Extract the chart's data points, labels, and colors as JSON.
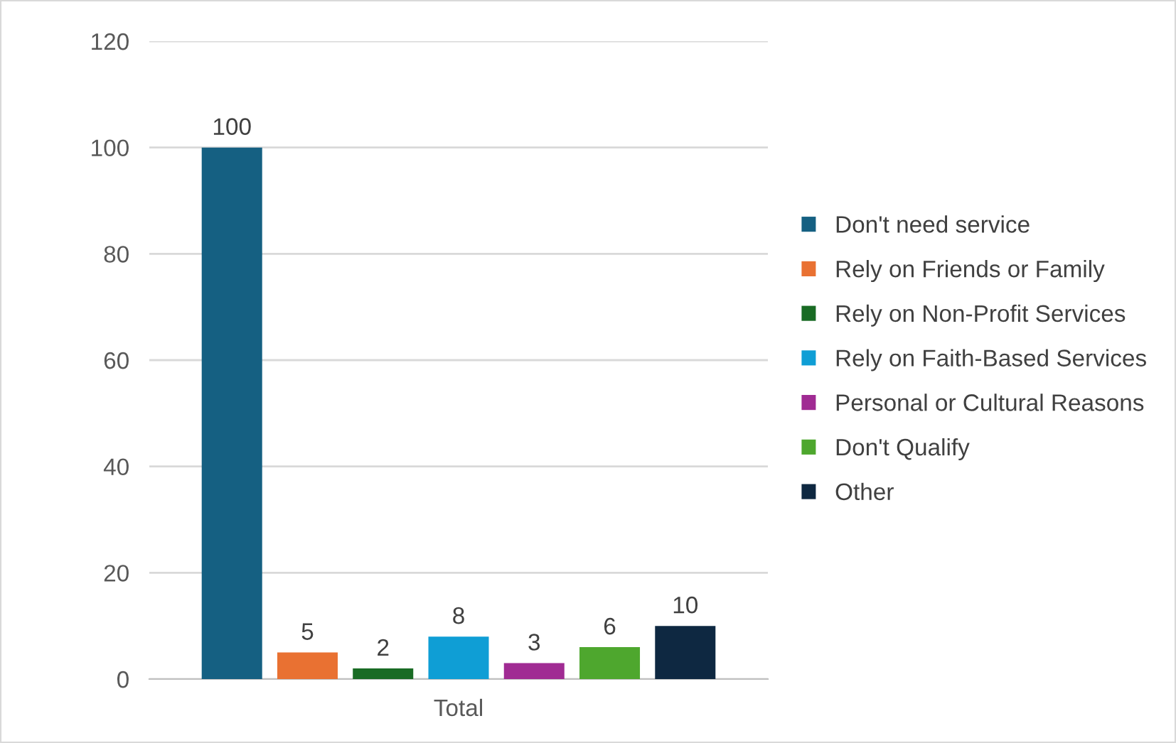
{
  "chart_data": {
    "type": "bar",
    "categories": [
      "Total"
    ],
    "series": [
      {
        "name": "Don't need service",
        "color": "#156082",
        "values": [
          100
        ]
      },
      {
        "name": "Rely on Friends or Family",
        "color": "#e97132",
        "values": [
          5
        ]
      },
      {
        "name": "Rely on Non-Profit Services",
        "color": "#196b24",
        "values": [
          2
        ]
      },
      {
        "name": "Rely on Faith-Based Services",
        "color": "#0f9ed5",
        "values": [
          8
        ]
      },
      {
        "name": "Personal or Cultural Reasons",
        "color": "#a02b93",
        "values": [
          3
        ]
      },
      {
        "name": "Don't Qualify",
        "color": "#4ea72e",
        "values": [
          6
        ]
      },
      {
        "name": "Other",
        "color": "#0e2841",
        "values": [
          10
        ]
      }
    ],
    "ylim": [
      0,
      120
    ],
    "yticks": [
      0,
      20,
      40,
      60,
      80,
      100,
      120
    ],
    "grid": "y",
    "legend": "right",
    "data_labels": true
  }
}
